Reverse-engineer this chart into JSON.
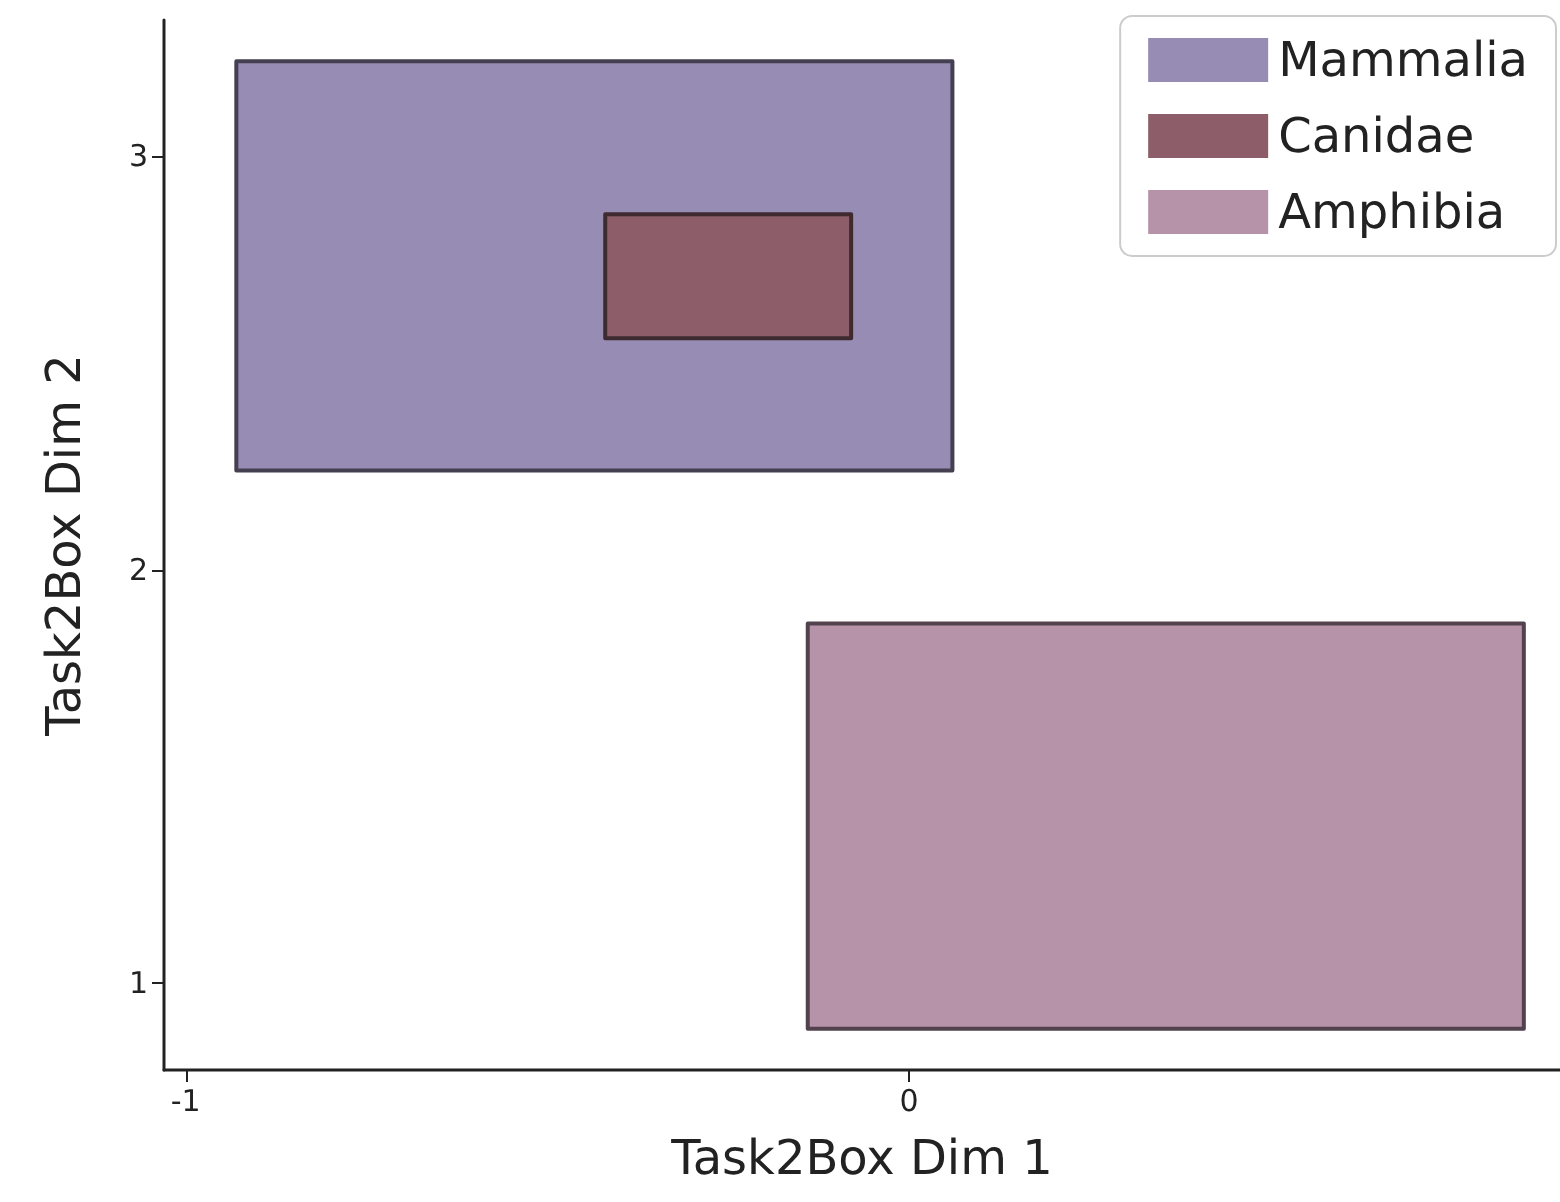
{
  "chart_data": {
    "type": "area",
    "xlabel": "Task2Box Dim 1",
    "ylabel": "Task2Box Dim 2",
    "xlim": [
      -1.03,
      0.9
    ],
    "ylim": [
      0.79,
      3.33
    ],
    "xticks": [
      -1,
      0
    ],
    "yticks": [
      1,
      2,
      3
    ],
    "legend": "top right",
    "series": [
      {
        "name": "Mammalia",
        "color": "#968cb4",
        "x": [
          -0.93,
          0.06,
          0.06,
          -0.93
        ],
        "values": [
          2.24,
          2.24,
          3.23,
          3.23
        ]
      },
      {
        "name": "Canidae",
        "color": "#8d5e6a",
        "x": [
          -0.42,
          -0.08,
          -0.08,
          -0.42
        ],
        "values": [
          2.56,
          2.56,
          2.86,
          2.86
        ]
      },
      {
        "name": "Amphibia",
        "color": "#b793aa",
        "x": [
          -0.14,
          0.85,
          0.85,
          -0.14
        ],
        "values": [
          0.89,
          0.89,
          1.87,
          1.87
        ]
      }
    ]
  }
}
